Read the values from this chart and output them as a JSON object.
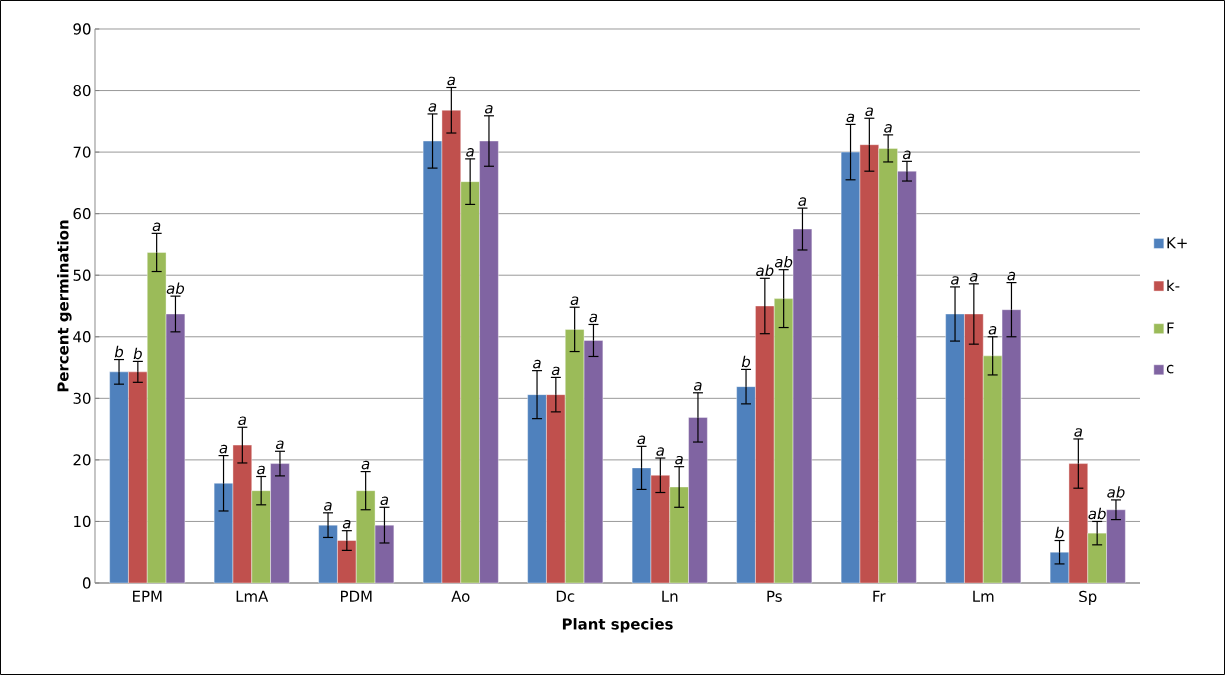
{
  "chart_data": {
    "type": "bar",
    "xlabel": "Plant species",
    "ylabel": "Percent germination",
    "categories": [
      "EPM",
      "LmA",
      "PDM",
      "Ao",
      "Dc",
      "Ln",
      "Ps",
      "Fr",
      "Lm",
      "Sp"
    ],
    "ylim": [
      0,
      90
    ],
    "yticks": [
      0,
      10,
      20,
      30,
      40,
      50,
      60,
      70,
      80,
      90
    ],
    "grid": "y",
    "legend": "right",
    "series": [
      {
        "name": "K+",
        "color": "#4f81bd",
        "values": [
          34.3,
          16.2,
          9.4,
          71.8,
          30.6,
          18.7,
          31.9,
          70,
          43.7,
          5
        ],
        "errors": [
          2,
          4.5,
          2,
          4.4,
          3.9,
          3.5,
          2.8,
          4.5,
          4.4,
          1.9
        ],
        "value_labels": [
          "b",
          "a",
          "a",
          "a",
          "a",
          "a",
          "b",
          "a",
          "a",
          "b"
        ]
      },
      {
        "name": "k-",
        "color": "#c0504d",
        "values": [
          34.3,
          22.4,
          6.9,
          76.8,
          30.6,
          17.5,
          45,
          71.2,
          43.7,
          19.4
        ],
        "errors": [
          1.7,
          2.9,
          1.6,
          3.7,
          2.8,
          2.8,
          4.5,
          4.3,
          4.9,
          4
        ],
        "value_labels": [
          "b",
          "a",
          "a",
          "a",
          "a",
          "a",
          "ab",
          "a",
          "a",
          "a"
        ]
      },
      {
        "name": "F",
        "color": "#9bbb59",
        "values": [
          53.7,
          15,
          15,
          65.2,
          41.2,
          15.6,
          46.2,
          70.6,
          36.9,
          8.1
        ],
        "errors": [
          3.1,
          2.3,
          3.1,
          3.7,
          3.6,
          3.3,
          4.7,
          2.2,
          3.1,
          1.9
        ],
        "value_labels": [
          "a",
          "a",
          "a",
          "a",
          "a",
          "a",
          "ab",
          "a",
          "a",
          "ab"
        ]
      },
      {
        "name": "c",
        "color": "#8064a2",
        "values": [
          43.7,
          19.4,
          9.4,
          71.8,
          39.4,
          26.9,
          57.5,
          66.9,
          44.4,
          11.9
        ],
        "errors": [
          2.9,
          2,
          2.9,
          4.1,
          2.6,
          4,
          3.4,
          1.6,
          4.4,
          1.6
        ],
        "value_labels": [
          "ab",
          "a",
          "a",
          "a",
          "a",
          "a",
          "a",
          "a",
          "a",
          "ab"
        ]
      }
    ]
  }
}
